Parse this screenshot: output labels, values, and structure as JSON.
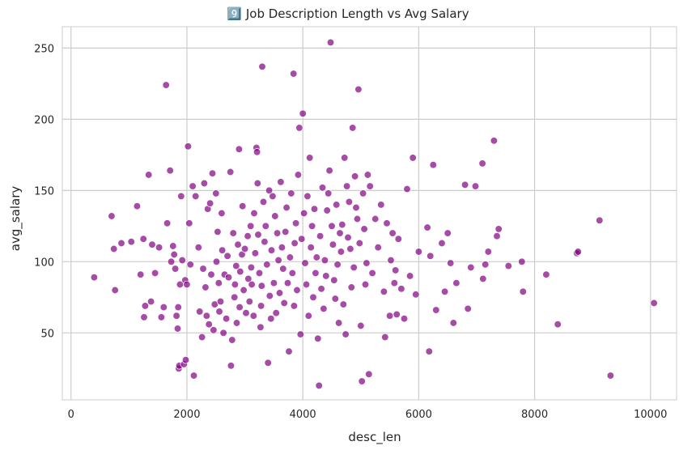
{
  "chart_data": {
    "type": "scatter",
    "title": "9️⃣ Job Description Length vs Avg Salary",
    "xlabel": "desc_len",
    "ylabel": "avg_salary",
    "xlim": [
      -150,
      10450
    ],
    "ylim": [
      3,
      265
    ],
    "xticks": [
      0,
      2000,
      4000,
      6000,
      8000,
      10000
    ],
    "xtick_labels": [
      "0",
      "2000",
      "4000",
      "6000",
      "8000",
      "10000"
    ],
    "yticks": [
      50,
      100,
      150,
      200,
      250
    ],
    "ytick_labels": [
      "50",
      "100",
      "150",
      "200",
      "250"
    ],
    "grid": true,
    "legend": "none",
    "marker_color": "#800080",
    "marker_edge": "#ffffff",
    "marker_alpha": 0.7,
    "grid_color": "#cccccc",
    "background": "#ffffff",
    "points": [
      [
        400,
        89
      ],
      [
        700,
        132
      ],
      [
        740,
        109
      ],
      [
        760,
        80
      ],
      [
        870,
        113
      ],
      [
        1040,
        114
      ],
      [
        1140,
        139
      ],
      [
        1200,
        91
      ],
      [
        1250,
        116
      ],
      [
        1280,
        69
      ],
      [
        1260,
        61
      ],
      [
        1340,
        161
      ],
      [
        1380,
        72
      ],
      [
        1400,
        112
      ],
      [
        1450,
        92
      ],
      [
        1520,
        110
      ],
      [
        1560,
        61
      ],
      [
        1600,
        68
      ],
      [
        1640,
        224
      ],
      [
        1660,
        127
      ],
      [
        1710,
        164
      ],
      [
        1730,
        100
      ],
      [
        1760,
        111
      ],
      [
        1780,
        105
      ],
      [
        1800,
        95
      ],
      [
        1820,
        62
      ],
      [
        1840,
        53
      ],
      [
        1850,
        68
      ],
      [
        1860,
        25
      ],
      [
        1870,
        27
      ],
      [
        1880,
        84
      ],
      [
        1900,
        146
      ],
      [
        1920,
        101
      ],
      [
        1950,
        28
      ],
      [
        1970,
        87
      ],
      [
        1980,
        31
      ],
      [
        2000,
        84
      ],
      [
        2020,
        181
      ],
      [
        2040,
        127
      ],
      [
        2060,
        98
      ],
      [
        2100,
        153
      ],
      [
        2120,
        20
      ],
      [
        2150,
        146
      ],
      [
        2200,
        110
      ],
      [
        2220,
        65
      ],
      [
        2260,
        47
      ],
      [
        2280,
        95
      ],
      [
        2300,
        155
      ],
      [
        2320,
        82
      ],
      [
        2340,
        62
      ],
      [
        2360,
        137
      ],
      [
        2380,
        56
      ],
      [
        2400,
        141
      ],
      [
        2420,
        91
      ],
      [
        2440,
        162
      ],
      [
        2460,
        52
      ],
      [
        2480,
        70
      ],
      [
        2500,
        148
      ],
      [
        2510,
        100
      ],
      [
        2530,
        121
      ],
      [
        2550,
        85
      ],
      [
        2560,
        65
      ],
      [
        2580,
        72
      ],
      [
        2600,
        134
      ],
      [
        2610,
        108
      ],
      [
        2630,
        50
      ],
      [
        2650,
        91
      ],
      [
        2680,
        60
      ],
      [
        2700,
        104
      ],
      [
        2720,
        89
      ],
      [
        2750,
        163
      ],
      [
        2760,
        27
      ],
      [
        2780,
        45
      ],
      [
        2800,
        120
      ],
      [
        2820,
        75
      ],
      [
        2830,
        84
      ],
      [
        2850,
        97
      ],
      [
        2860,
        57
      ],
      [
        2880,
        112
      ],
      [
        2900,
        179
      ],
      [
        2910,
        68
      ],
      [
        2920,
        93
      ],
      [
        2950,
        105
      ],
      [
        2960,
        139
      ],
      [
        2980,
        80
      ],
      [
        3000,
        109
      ],
      [
        3020,
        64
      ],
      [
        3050,
        118
      ],
      [
        3060,
        88
      ],
      [
        3080,
        72
      ],
      [
        3100,
        125
      ],
      [
        3110,
        96
      ],
      [
        3120,
        84
      ],
      [
        3150,
        62
      ],
      [
        3160,
        134
      ],
      [
        3180,
        106
      ],
      [
        3200,
        180
      ],
      [
        3210,
        177
      ],
      [
        3220,
        155
      ],
      [
        3230,
        119
      ],
      [
        3250,
        92
      ],
      [
        3270,
        54
      ],
      [
        3280,
        69
      ],
      [
        3290,
        83
      ],
      [
        3300,
        237
      ],
      [
        3320,
        142
      ],
      [
        3340,
        114
      ],
      [
        3360,
        125
      ],
      [
        3380,
        98
      ],
      [
        3400,
        29
      ],
      [
        3420,
        150
      ],
      [
        3430,
        76
      ],
      [
        3450,
        60
      ],
      [
        3460,
        108
      ],
      [
        3480,
        146
      ],
      [
        3500,
        85
      ],
      [
        3520,
        132
      ],
      [
        3540,
        64
      ],
      [
        3560,
        120
      ],
      [
        3580,
        101
      ],
      [
        3600,
        78
      ],
      [
        3620,
        156
      ],
      [
        3640,
        110
      ],
      [
        3660,
        95
      ],
      [
        3680,
        71
      ],
      [
        3700,
        121
      ],
      [
        3720,
        138
      ],
      [
        3740,
        85
      ],
      [
        3760,
        37
      ],
      [
        3780,
        103
      ],
      [
        3800,
        148
      ],
      [
        3820,
        92
      ],
      [
        3840,
        232
      ],
      [
        3850,
        69
      ],
      [
        3860,
        113
      ],
      [
        3880,
        127
      ],
      [
        3900,
        80
      ],
      [
        3920,
        161
      ],
      [
        3940,
        194
      ],
      [
        3960,
        49
      ],
      [
        3980,
        116
      ],
      [
        4000,
        204
      ],
      [
        4020,
        134
      ],
      [
        4040,
        99
      ],
      [
        4060,
        84
      ],
      [
        4080,
        146
      ],
      [
        4100,
        62
      ],
      [
        4120,
        173
      ],
      [
        4140,
        110
      ],
      [
        4160,
        125
      ],
      [
        4180,
        75
      ],
      [
        4200,
        137
      ],
      [
        4220,
        92
      ],
      [
        4240,
        103
      ],
      [
        4260,
        46
      ],
      [
        4280,
        13
      ],
      [
        4300,
        118
      ],
      [
        4320,
        81
      ],
      [
        4340,
        152
      ],
      [
        4360,
        67
      ],
      [
        4380,
        101
      ],
      [
        4400,
        90
      ],
      [
        4420,
        136
      ],
      [
        4440,
        148
      ],
      [
        4460,
        164
      ],
      [
        4480,
        254
      ],
      [
        4500,
        125
      ],
      [
        4520,
        112
      ],
      [
        4540,
        87
      ],
      [
        4560,
        74
      ],
      [
        4580,
        140
      ],
      [
        4600,
        98
      ],
      [
        4620,
        57
      ],
      [
        4640,
        120
      ],
      [
        4660,
        107
      ],
      [
        4680,
        126
      ],
      [
        4700,
        70
      ],
      [
        4720,
        173
      ],
      [
        4740,
        49
      ],
      [
        4760,
        153
      ],
      [
        4780,
        117
      ],
      [
        4800,
        142
      ],
      [
        4820,
        109
      ],
      [
        4840,
        82
      ],
      [
        4860,
        194
      ],
      [
        4880,
        96
      ],
      [
        4900,
        160
      ],
      [
        4920,
        138
      ],
      [
        4940,
        130
      ],
      [
        4960,
        221
      ],
      [
        4980,
        113
      ],
      [
        5000,
        55
      ],
      [
        5020,
        16
      ],
      [
        5040,
        148
      ],
      [
        5060,
        123
      ],
      [
        5080,
        84
      ],
      [
        5100,
        99
      ],
      [
        5120,
        161
      ],
      [
        5140,
        21
      ],
      [
        5160,
        153
      ],
      [
        5200,
        92
      ],
      [
        5250,
        130
      ],
      [
        5300,
        110
      ],
      [
        5350,
        140
      ],
      [
        5400,
        79
      ],
      [
        5420,
        47
      ],
      [
        5450,
        127
      ],
      [
        5500,
        62
      ],
      [
        5520,
        101
      ],
      [
        5550,
        120
      ],
      [
        5580,
        85
      ],
      [
        5600,
        94
      ],
      [
        5620,
        63
      ],
      [
        5650,
        116
      ],
      [
        5700,
        81
      ],
      [
        5750,
        60
      ],
      [
        5800,
        151
      ],
      [
        5850,
        90
      ],
      [
        5900,
        173
      ],
      [
        5950,
        77
      ],
      [
        6000,
        107
      ],
      [
        6150,
        124
      ],
      [
        6180,
        37
      ],
      [
        6200,
        104
      ],
      [
        6250,
        168
      ],
      [
        6300,
        66
      ],
      [
        6400,
        113
      ],
      [
        6450,
        79
      ],
      [
        6500,
        120
      ],
      [
        6550,
        99
      ],
      [
        6600,
        57
      ],
      [
        6650,
        85
      ],
      [
        6800,
        154
      ],
      [
        6850,
        67
      ],
      [
        6900,
        96
      ],
      [
        6980,
        153
      ],
      [
        7100,
        169
      ],
      [
        7110,
        88
      ],
      [
        7150,
        98
      ],
      [
        7200,
        107
      ],
      [
        7300,
        185
      ],
      [
        7350,
        118
      ],
      [
        7380,
        123
      ],
      [
        7550,
        97
      ],
      [
        7780,
        100
      ],
      [
        7800,
        79
      ],
      [
        8200,
        91
      ],
      [
        8400,
        56
      ],
      [
        8730,
        106
      ],
      [
        8750,
        107
      ],
      [
        9120,
        129
      ],
      [
        9310,
        20
      ],
      [
        10060,
        71
      ]
    ]
  }
}
